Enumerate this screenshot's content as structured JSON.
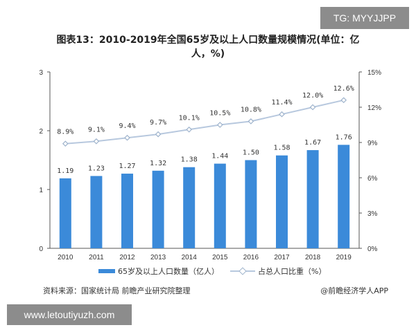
{
  "watermark_top": "TG: MYYJJPP",
  "watermark_bottom": "www.letoutiyuzh.com",
  "title_line1": "图表13：2010-2019年全国65岁及以上人口数量规模情况(单位：亿",
  "title_line2": "人，%)",
  "footer_source": "资料来源：国家统计局 前瞻产业研究院整理",
  "footer_brand": "@前瞻经济学人APP",
  "colors": {
    "bar": "#3b8ad9",
    "line": "#b7c8de",
    "marker": "#9eb3cc"
  },
  "chart_data": {
    "type": "bar",
    "categories": [
      "2010",
      "2011",
      "2012",
      "2013",
      "2014",
      "2015",
      "2016",
      "2017",
      "2018",
      "2019"
    ],
    "series": [
      {
        "name": "65岁及以上人口数量（亿人）",
        "type": "bar",
        "axis": "left",
        "values": [
          1.19,
          1.23,
          1.27,
          1.32,
          1.38,
          1.44,
          1.5,
          1.58,
          1.67,
          1.76
        ],
        "labels": [
          "1.19",
          "1.23",
          "1.27",
          "1.32",
          "1.38",
          "1.44",
          "1.50",
          "1.58",
          "1.67",
          "1.76"
        ]
      },
      {
        "name": "占总人口比重（%）",
        "type": "line",
        "axis": "right",
        "values": [
          8.9,
          9.1,
          9.4,
          9.7,
          10.1,
          10.5,
          10.8,
          11.4,
          12.0,
          12.6
        ],
        "labels": [
          "8.9%",
          "9.1%",
          "9.4%",
          "9.7%",
          "10.1%",
          "10.5%",
          "10.8%",
          "11.4%",
          "12.0%",
          "12.6%"
        ]
      }
    ],
    "y_left": {
      "min": 0,
      "max": 3,
      "ticks": [
        "0",
        "1",
        "2",
        "3"
      ]
    },
    "y_right": {
      "min": 0,
      "max": 15,
      "ticks": [
        "0%",
        "3%",
        "6%",
        "9%",
        "12%",
        "15%"
      ]
    },
    "legend_position": "bottom",
    "grid": false
  }
}
